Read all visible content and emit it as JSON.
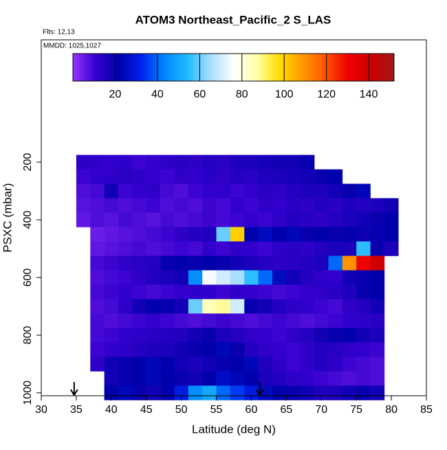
{
  "chart_data": {
    "type": "heatmap",
    "title": "ATOM3 Northeast_Pacific_2 S_LAS",
    "annotations": [
      "Flts: 12,13",
      "MMDD: 1025,1027"
    ],
    "xlabel": "Latitude (deg N)",
    "ylabel": "PSXC (mbar)",
    "xlim": [
      30,
      85
    ],
    "xticks": [
      30,
      35,
      40,
      45,
      50,
      55,
      60,
      65,
      70,
      75,
      80,
      85
    ],
    "ylim": [
      1010,
      -224
    ],
    "yticks": [
      200,
      400,
      600,
      800,
      1000
    ],
    "x_edges": [
      35,
      37,
      39,
      41,
      43,
      45,
      47,
      49,
      51,
      53,
      55,
      57,
      59,
      61,
      63,
      65,
      67,
      69,
      71,
      73,
      75,
      77,
      79,
      81
    ],
    "y_edges": [
      175,
      225,
      275,
      325,
      375,
      425,
      475,
      525,
      575,
      625,
      675,
      725,
      775,
      825,
      875,
      925,
      975,
      1025
    ],
    "values": [
      [
        12,
        12,
        11,
        12,
        10,
        11,
        12,
        13,
        12,
        14,
        13,
        15,
        16,
        17,
        18,
        18,
        20,
        null,
        null,
        null,
        null,
        null,
        null
      ],
      [
        10,
        11,
        12,
        13,
        12,
        11,
        10,
        12,
        11,
        13,
        12,
        14,
        13,
        15,
        16,
        17,
        18,
        20,
        22,
        null,
        null,
        null,
        null
      ],
      [
        8,
        9,
        18,
        10,
        11,
        12,
        9,
        8,
        10,
        11,
        12,
        10,
        11,
        13,
        12,
        14,
        16,
        15,
        18,
        20,
        24,
        null,
        null
      ],
      [
        7,
        8,
        9,
        8,
        9,
        10,
        8,
        9,
        8,
        10,
        9,
        11,
        10,
        12,
        11,
        13,
        12,
        14,
        13,
        15,
        14,
        16,
        18
      ],
      [
        6,
        8,
        7,
        9,
        8,
        7,
        9,
        8,
        9,
        10,
        9,
        10,
        11,
        10,
        12,
        14,
        13,
        12,
        14,
        16,
        18,
        20,
        22
      ],
      [
        null,
        5,
        6,
        7,
        8,
        9,
        10,
        12,
        14,
        15,
        60,
        100,
        22,
        25,
        22,
        24,
        20,
        22,
        20,
        21,
        19,
        20,
        22
      ],
      [
        null,
        6,
        7,
        8,
        9,
        8,
        9,
        10,
        9,
        11,
        10,
        12,
        11,
        10,
        12,
        13,
        12,
        14,
        16,
        16,
        55,
        20,
        16
      ],
      [
        null,
        9,
        10,
        12,
        13,
        14,
        20,
        22,
        20,
        22,
        20,
        18,
        16,
        14,
        12,
        13,
        14,
        16,
        40,
        110,
        130,
        140,
        null
      ],
      [
        null,
        8,
        9,
        10,
        12,
        14,
        16,
        18,
        45,
        75,
        70,
        65,
        55,
        40,
        25,
        18,
        14,
        12,
        11,
        18,
        20,
        22,
        null
      ],
      [
        null,
        9,
        10,
        11,
        10,
        9,
        10,
        11,
        12,
        11,
        10,
        12,
        11,
        10,
        9,
        10,
        11,
        12,
        13,
        15,
        20,
        22,
        null
      ],
      [
        null,
        8,
        9,
        12,
        18,
        22,
        20,
        18,
        60,
        85,
        88,
        70,
        20,
        18,
        14,
        12,
        11,
        10,
        9,
        12,
        14,
        18,
        null
      ],
      [
        null,
        9,
        8,
        9,
        10,
        11,
        10,
        9,
        8,
        9,
        10,
        9,
        8,
        9,
        10,
        9,
        8,
        9,
        10,
        11,
        12,
        13,
        null
      ],
      [
        null,
        9,
        10,
        11,
        12,
        13,
        14,
        15,
        18,
        20,
        16,
        14,
        12,
        11,
        10,
        12,
        14,
        18,
        20,
        22,
        18,
        16,
        null
      ],
      [
        null,
        10,
        11,
        12,
        14,
        15,
        16,
        18,
        20,
        22,
        24,
        20,
        14,
        12,
        11,
        10,
        12,
        14,
        13,
        12,
        11,
        10,
        null
      ],
      [
        null,
        12,
        18,
        20,
        22,
        24,
        22,
        18,
        16,
        18,
        20,
        22,
        24,
        15,
        12,
        10,
        12,
        14,
        12,
        10,
        9,
        8,
        null
      ],
      [
        null,
        null,
        18,
        20,
        22,
        24,
        22,
        20,
        18,
        22,
        26,
        24,
        22,
        16,
        14,
        12,
        11,
        10,
        9,
        8,
        9,
        8,
        null
      ],
      [
        null,
        null,
        22,
        24,
        20,
        18,
        22,
        30,
        45,
        50,
        40,
        35,
        30,
        25,
        22,
        20,
        18,
        15,
        16,
        18,
        20,
        18,
        null
      ]
    ],
    "zlim": [
      0,
      152
    ],
    "zticks": [
      20,
      40,
      60,
      80,
      100,
      120,
      140
    ],
    "colormap": [
      "#9933ff",
      "#3300cc",
      "#0000aa",
      "#0022ee",
      "#0088ff",
      "#22bbff",
      "#aaddff",
      "#ffffff",
      "#ffffaa",
      "#ffdd00",
      "#ff9900",
      "#ff5500",
      "#ee0000",
      "#cc0000",
      "#a01818"
    ],
    "arrows_x": [
      34.7,
      61.2
    ]
  }
}
